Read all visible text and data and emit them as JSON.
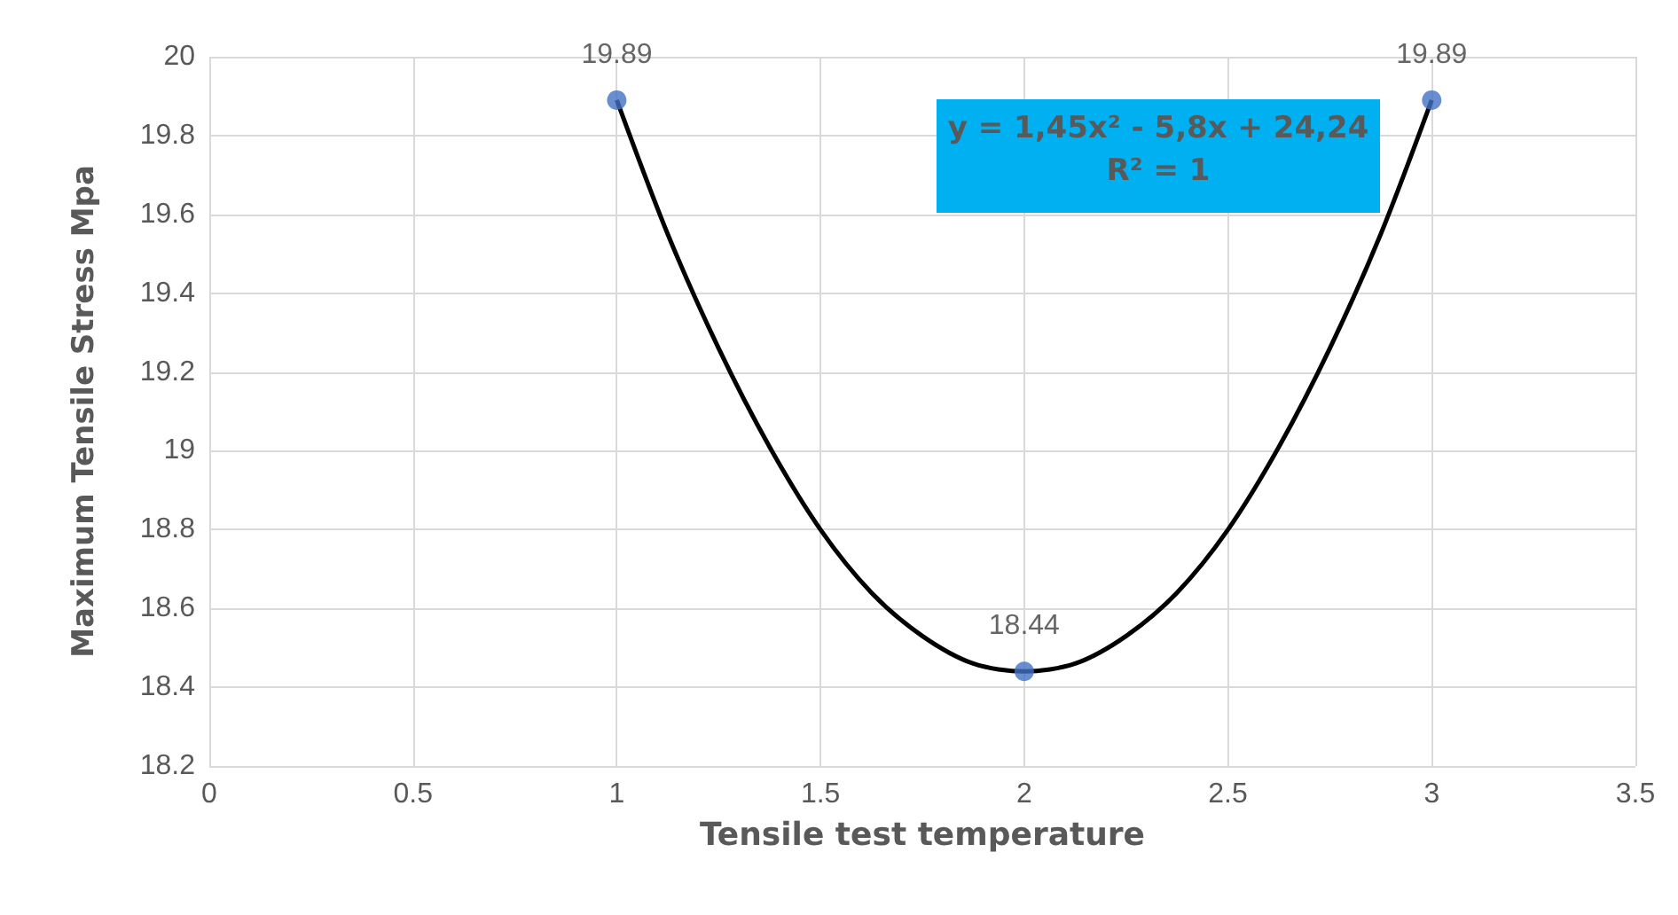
{
  "chart_data": {
    "type": "scatter",
    "xlabel": "Tensile test temperature",
    "ylabel": "Maximum Tensile Stress Mpa",
    "series": [
      {
        "color": "#4472c4",
        "marker": "circle",
        "x": [
          1,
          2,
          3
        ],
        "values": [
          19.89,
          18.44,
          19.89
        ],
        "value_labels": [
          "19.89",
          "18.44",
          "19.89"
        ]
      },
      {
        "type": "line",
        "color": "#000000",
        "marker": "none",
        "x": [
          1,
          1.125,
          1.25,
          1.375,
          1.5,
          1.625,
          1.75,
          1.875,
          2,
          2.125,
          2.25,
          2.375,
          2.5,
          2.625,
          2.75,
          2.875,
          3
        ],
        "values": [
          19.89,
          19.55,
          19.26,
          19.01,
          18.8,
          18.64,
          18.53,
          18.46,
          18.44,
          18.46,
          18.53,
          18.64,
          18.8,
          19.01,
          19.26,
          19.55,
          19.89
        ]
      }
    ],
    "grid": true,
    "xlim": [
      0,
      3.5
    ],
    "xticks": [
      0,
      0.5,
      1,
      1.5,
      2,
      2.5,
      3,
      3.5
    ],
    "ylim": [
      18.2,
      20
    ],
    "yticks": [
      18.2,
      18.4,
      18.6,
      18.8,
      19,
      19.2,
      19.4,
      19.6,
      19.8,
      20
    ],
    "annotations": [
      "y = 1,45x² - 5,8x + 24,24",
      "R² = 1"
    ]
  }
}
